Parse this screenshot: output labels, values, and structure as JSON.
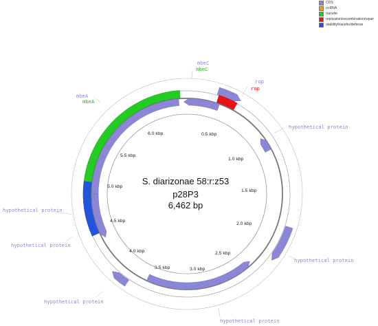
{
  "legend": [
    {
      "label": "CDS",
      "color": "#8b86d6"
    },
    {
      "label": "ncRNA",
      "color": "#f39c12"
    },
    {
      "label": "transfer",
      "color": "#22cc22"
    },
    {
      "label": "replication/recombination/repair",
      "color": "#ee1111"
    },
    {
      "label": "stability/transfer/defense",
      "color": "#2255dd"
    }
  ],
  "title": {
    "line1": "S. diarizonae 58:r:z53",
    "line2": "p28P3",
    "line3": "6,462 bp"
  },
  "ticks": [
    "0.5 kbp",
    "1.0 kbp",
    "1.5 kbp",
    "2.0 kbp",
    "2.5 kbp",
    "3.0 kbp",
    "3.5 kbp",
    "4.0 kbp",
    "4.5 kbp",
    "5.0 kbp",
    "5.5 kbp",
    "6.0 kbp"
  ],
  "annotations": {
    "mbeC_cds": "mbeC",
    "mbeC_transfer": "mbeC",
    "rop_cds": "rop",
    "rop_repl": "rop",
    "mbeA_cds": "mbeA",
    "mbeA_transfer": "mbeA",
    "hyp1": "hypothetical protein",
    "hyp2": "hypothetical protein",
    "hyp3": "hypothetical protein",
    "hyp4": "hypothetical protein",
    "hyp5": "hypothetical protein",
    "hyp6": "hypothetical protein"
  },
  "plasmid_length_bp": 6462,
  "features": [
    {
      "name": "rop",
      "type": "CDS",
      "start": 150,
      "end": 420,
      "strand": "+"
    },
    {
      "name": "rop",
      "type": "replication/recombination/repair",
      "start": 160,
      "end": 410,
      "strand": "+"
    },
    {
      "name": "hypothetical protein",
      "type": "CDS",
      "start": 1180,
      "end": 1360,
      "strand": "-"
    },
    {
      "name": "hypothetical protein",
      "type": "CDS",
      "start": 2350,
      "end": 2900,
      "strand": "+"
    },
    {
      "name": "hypothetical protein",
      "type": "CDS",
      "start": 3450,
      "end": 3640,
      "strand": "+"
    },
    {
      "name": "hypothetical protein",
      "type": "CDS",
      "start": 4320,
      "end": 4940,
      "strand": "-"
    },
    {
      "name": "hypothetical protein",
      "type": "CDS",
      "start": 4320,
      "end": 4850,
      "strand": "-"
    },
    {
      "name": "CDS",
      "type": "CDS",
      "start": 2480,
      "end": 3840,
      "strand": "-"
    },
    {
      "name": "CDS",
      "type": "CDS",
      "start": 6380,
      "end": 6462,
      "strand": "-"
    },
    {
      "name": "CDS",
      "type": "CDS",
      "start": 0,
      "end": 370,
      "strand": "-"
    },
    {
      "name": "CDS",
      "type": "CDS",
      "start": 4430,
      "end": 4660,
      "strand": "-"
    },
    {
      "name": "mbeA",
      "type": "CDS",
      "start": 5020,
      "end": 6290,
      "strand": "-"
    },
    {
      "name": "mbeA",
      "type": "transfer",
      "start": 5010,
      "end": 6300,
      "strand": "-"
    },
    {
      "name": "mbeC",
      "type": "CDS",
      "start": 6300,
      "end": 6462,
      "strand": "-"
    },
    {
      "name": "stability",
      "type": "stability/transfer/defense",
      "start": 4350,
      "end": 4960,
      "strand": "-"
    }
  ]
}
